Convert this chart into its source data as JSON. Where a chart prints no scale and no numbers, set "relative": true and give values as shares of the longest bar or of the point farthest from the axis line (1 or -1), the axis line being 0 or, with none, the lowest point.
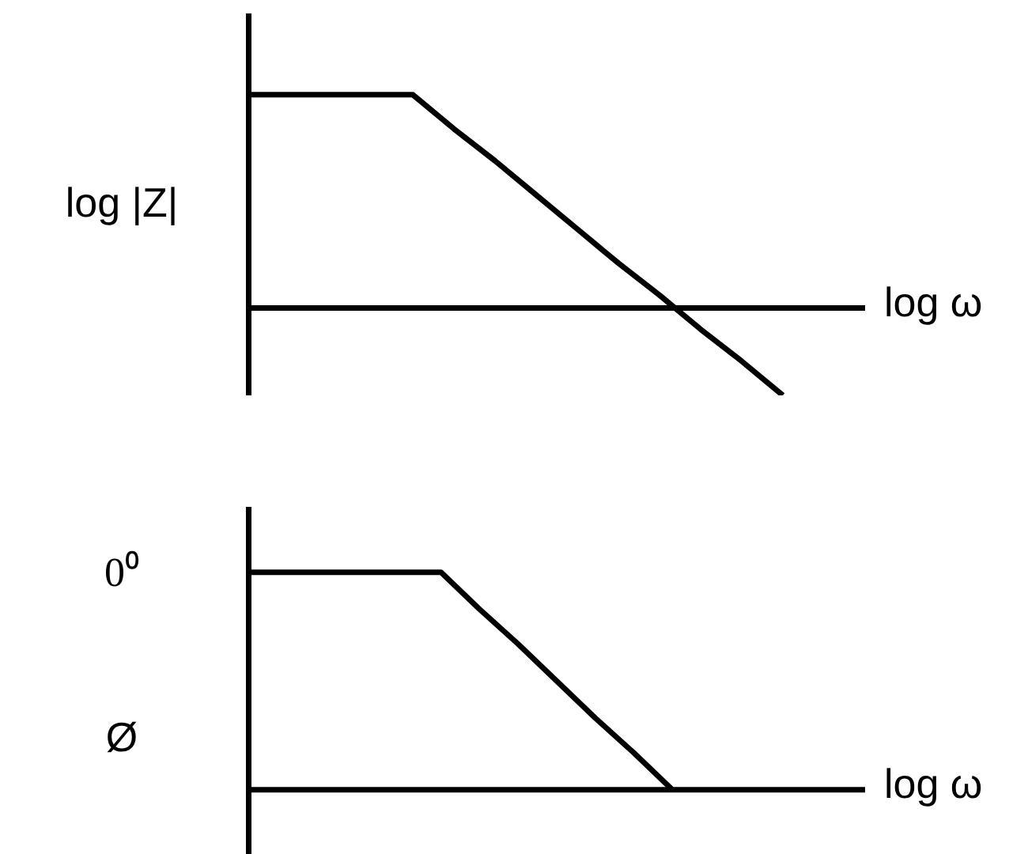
{
  "chart_data": [
    {
      "type": "line",
      "relative": true,
      "ylabel": "log |Z|",
      "xlabel": "log ω",
      "categories": [
        null,
        null,
        null,
        null,
        null,
        null,
        null,
        null,
        null,
        null,
        null,
        null,
        null,
        null,
        null,
        null
      ],
      "series": [
        {
          "color": "#000000",
          "values": [
            1,
            1,
            1,
            1,
            1,
            0.84,
            0.69,
            0.53,
            0.37,
            0.21,
            0.06,
            -0.1,
            -0.25,
            -0.41,
            null,
            null
          ]
        }
      ],
      "legend": false,
      "grid": false,
      "marker": "none",
      "line_style": "solid",
      "tick_labels": false
    },
    {
      "type": "line",
      "relative": true,
      "ylabel": "Ø",
      "xlabel": "log ω",
      "annotations": [
        "0⁰"
      ],
      "categories": [
        null,
        null,
        null,
        null,
        null,
        null,
        null,
        null,
        null,
        null,
        null,
        null,
        null,
        null,
        null,
        null,
        null
      ],
      "series": [
        {
          "color": "#000000",
          "values": [
            1,
            1,
            1,
            1,
            1,
            1,
            0.83,
            0.67,
            0.5,
            0.33,
            0.17,
            0,
            null,
            null,
            null,
            null,
            null
          ]
        }
      ],
      "legend": false,
      "grid": false,
      "marker": "none",
      "line_style": "solid",
      "tick_labels": false
    }
  ]
}
